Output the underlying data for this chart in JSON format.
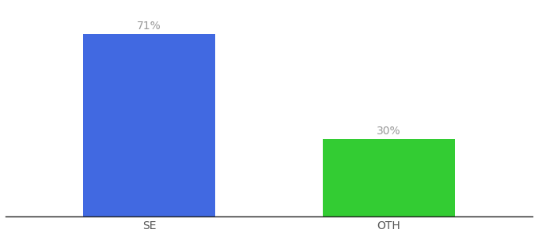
{
  "categories": [
    "SE",
    "OTH"
  ],
  "values": [
    71,
    30
  ],
  "bar_colors": [
    "#4169e1",
    "#33cc33"
  ],
  "label_texts": [
    "71%",
    "30%"
  ],
  "label_color": "#999999",
  "label_fontsize": 10,
  "tick_fontsize": 10,
  "tick_color": "#555555",
  "background_color": "#ffffff",
  "ylim": [
    0,
    82
  ],
  "bar_width": 0.55,
  "xlim": [
    -0.6,
    1.6
  ]
}
